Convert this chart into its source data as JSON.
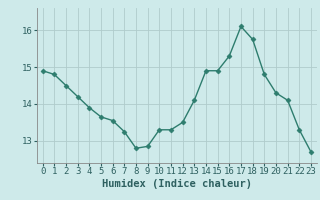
{
  "x": [
    0,
    1,
    2,
    3,
    4,
    5,
    6,
    7,
    8,
    9,
    10,
    11,
    12,
    13,
    14,
    15,
    16,
    17,
    18,
    19,
    20,
    21,
    22,
    23
  ],
  "y": [
    14.9,
    14.8,
    14.5,
    14.2,
    13.9,
    13.65,
    13.55,
    13.25,
    12.8,
    12.85,
    13.3,
    13.3,
    13.5,
    14.1,
    14.9,
    14.9,
    15.3,
    16.1,
    15.75,
    14.8,
    14.3,
    14.1,
    13.3,
    12.7
  ],
  "line_color": "#2e7d6e",
  "marker": "D",
  "markersize": 2.5,
  "linewidth": 1.0,
  "bg_color": "#ceeaea",
  "grid_color": "#b0cccc",
  "xlabel": "Humidex (Indice chaleur)",
  "xlabel_fontsize": 7.5,
  "yticks": [
    13,
    14,
    15,
    16
  ],
  "xticks": [
    0,
    1,
    2,
    3,
    4,
    5,
    6,
    7,
    8,
    9,
    10,
    11,
    12,
    13,
    14,
    15,
    16,
    17,
    18,
    19,
    20,
    21,
    22,
    23
  ],
  "ylim": [
    12.4,
    16.6
  ],
  "xlim": [
    -0.5,
    23.5
  ],
  "tick_fontsize": 6.5
}
